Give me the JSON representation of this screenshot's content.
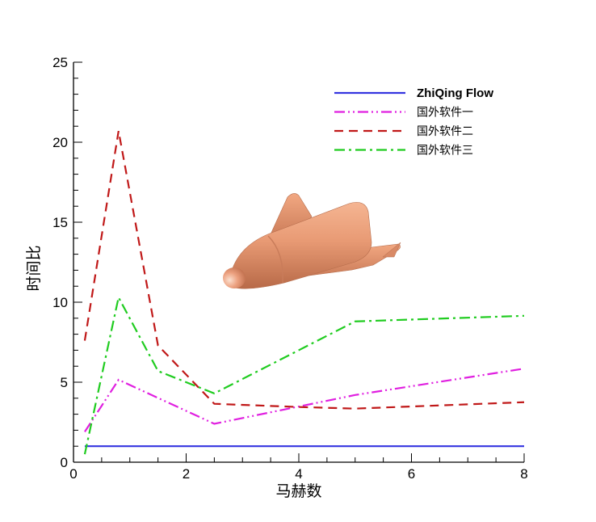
{
  "chart_data": {
    "type": "line",
    "title": "",
    "xlabel": "马赫数",
    "ylabel": "时间比",
    "xlim": [
      0,
      8
    ],
    "ylim": [
      0,
      25
    ],
    "xticks": [
      0,
      2,
      4,
      6,
      8
    ],
    "yticks": [
      0,
      5,
      10,
      15,
      20,
      25
    ],
    "xtick_labels": [
      "0",
      "2",
      "4",
      "6",
      "8"
    ],
    "ytick_labels": [
      "0",
      "5",
      "10",
      "15",
      "20",
      "25"
    ],
    "grid": false,
    "legend_position": "top-right",
    "series": [
      {
        "name": "ZhiQing Flow",
        "color": "#3535e0",
        "dash": "solid",
        "x": [
          0.2,
          8
        ],
        "y": [
          1.0,
          1.0
        ]
      },
      {
        "name": "国外软件一",
        "color": "#e020e0",
        "dash": "dash-dot-dot",
        "x": [
          0.2,
          0.8,
          2.5,
          5.0,
          8
        ],
        "y": [
          1.9,
          5.15,
          2.4,
          4.2,
          5.85
        ]
      },
      {
        "name": "国外软件二",
        "color": "#c01818",
        "dash": "dashed",
        "x": [
          0.2,
          0.8,
          1.5,
          2.5,
          4.0,
          5.0,
          8
        ],
        "y": [
          7.6,
          20.7,
          7.3,
          3.65,
          3.45,
          3.35,
          3.75
        ]
      },
      {
        "name": "国外软件三",
        "color": "#20cc20",
        "dash": "dash-dot",
        "x": [
          0.2,
          0.8,
          1.5,
          2.5,
          5.0,
          8
        ],
        "y": [
          0.5,
          10.3,
          5.7,
          4.3,
          8.8,
          9.15
        ]
      }
    ]
  }
}
